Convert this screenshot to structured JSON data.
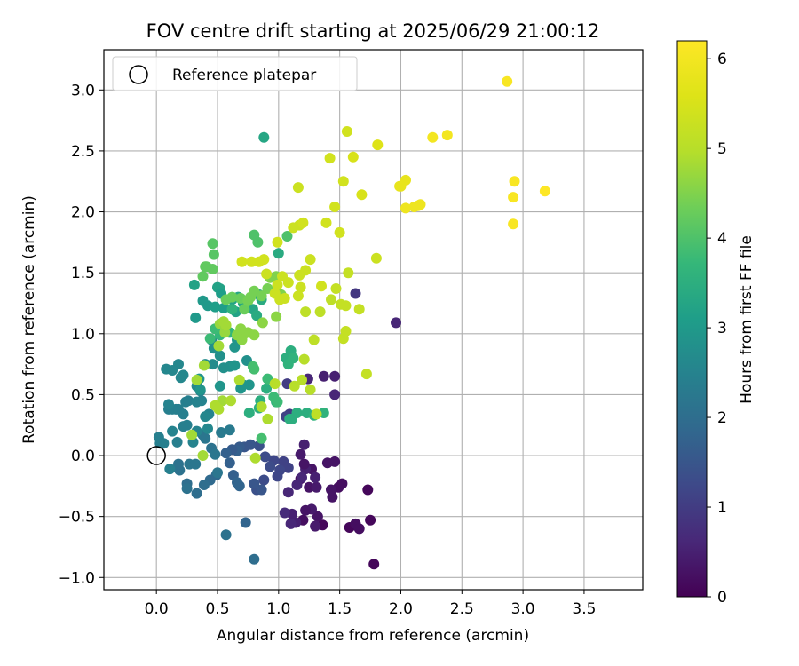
{
  "chart_data": {
    "type": "scatter",
    "title": "FOV centre drift starting at 2025/06/29 21:00:12",
    "xlabel": "Angular distance from reference (arcmin)",
    "ylabel": "Rotation from reference (arcmin)",
    "xlim": [
      -0.43,
      3.98
    ],
    "ylim": [
      -1.1,
      3.33
    ],
    "xticks": [
      "0.0",
      "0.5",
      "1.0",
      "1.5",
      "2.0",
      "2.5",
      "3.0",
      "3.5"
    ],
    "xtick_values": [
      0,
      0.5,
      1,
      1.5,
      2,
      2.5,
      3,
      3.5
    ],
    "yticks": [
      "−1.0",
      "−0.5",
      "0.0",
      "0.5",
      "1.0",
      "1.5",
      "2.0",
      "2.5",
      "3.0"
    ],
    "ytick_values": [
      -1,
      -0.5,
      0,
      0.5,
      1,
      1.5,
      2,
      2.5,
      3
    ],
    "grid": true,
    "legend": {
      "position": "top-left",
      "entries": [
        "Reference platepar"
      ]
    },
    "reference_point": {
      "x": 0,
      "y": 0
    },
    "colorbar": {
      "label": "Hours from first FF file",
      "range": [
        0,
        6.2
      ],
      "ticks": [
        "0",
        "1",
        "2",
        "3",
        "4",
        "5",
        "6"
      ],
      "tick_values": [
        0,
        1,
        2,
        3,
        4,
        5,
        6
      ],
      "colormap": "viridis"
    },
    "points": [
      [
        1.78,
        -0.89,
        0.1
      ],
      [
        1.75,
        -0.53,
        0.1
      ],
      [
        1.73,
        -0.28,
        0.1
      ],
      [
        1.58,
        -0.59,
        0.1
      ],
      [
        1.63,
        -0.56,
        0.2
      ],
      [
        1.66,
        -0.6,
        0.2
      ],
      [
        1.52,
        -0.23,
        0.2
      ],
      [
        1.49,
        -0.26,
        0.2
      ],
      [
        1.44,
        -0.34,
        0.3
      ],
      [
        1.43,
        -0.28,
        0.3
      ],
      [
        1.36,
        -0.57,
        0.1
      ],
      [
        1.32,
        -0.5,
        0.3
      ],
      [
        1.3,
        -0.58,
        0.4
      ],
      [
        1.27,
        -0.44,
        0.4
      ],
      [
        1.25,
        -0.26,
        0.3
      ],
      [
        1.22,
        -0.45,
        0.3
      ],
      [
        1.2,
        -0.53,
        0.2
      ],
      [
        1.18,
        -0.19,
        0.2
      ],
      [
        1.14,
        -0.55,
        0.5
      ],
      [
        1.11,
        -0.48,
        0.5
      ],
      [
        1.1,
        -0.56,
        0.6
      ],
      [
        1.08,
        -0.3,
        0.6
      ],
      [
        1.05,
        -0.47,
        0.7
      ],
      [
        1.27,
        -0.11,
        0.3
      ],
      [
        1.31,
        -0.26,
        0.4
      ],
      [
        1.3,
        -0.18,
        0.5
      ],
      [
        1.22,
        -0.11,
        0.5
      ],
      [
        1.19,
        -0.18,
        0.6
      ],
      [
        1.15,
        -0.24,
        0.6
      ],
      [
        1.4,
        -0.06,
        0.3
      ],
      [
        1.46,
        -0.05,
        0.3
      ],
      [
        1.37,
        0.65,
        0.5
      ],
      [
        1.46,
        0.65,
        0.5
      ],
      [
        1.46,
        0.5,
        0.6
      ],
      [
        1.24,
        0.63,
        0.6
      ],
      [
        1.21,
        0.09,
        0.5
      ],
      [
        1.18,
        0.01,
        0.4
      ],
      [
        1.21,
        -0.07,
        0.3
      ],
      [
        1.96,
        1.09,
        0.6
      ],
      [
        1.63,
        1.33,
        0.9
      ],
      [
        1.09,
        0.34,
        1.0
      ],
      [
        1.07,
        0.59,
        1.0
      ],
      [
        1.06,
        0.32,
        1.1
      ],
      [
        1.08,
        -0.1,
        1.1
      ],
      [
        1.04,
        -0.05,
        1.1
      ],
      [
        1.01,
        -0.12,
        1.2
      ],
      [
        0.96,
        -0.04,
        1.2
      ],
      [
        0.99,
        -0.17,
        1.2
      ],
      [
        0.93,
        -0.09,
        1.3
      ],
      [
        0.88,
        -0.2,
        1.3
      ],
      [
        0.82,
        -0.28,
        1.4
      ],
      [
        0.8,
        -0.23,
        1.5
      ],
      [
        0.86,
        -0.28,
        1.5
      ],
      [
        0.89,
        -0.01,
        1.3
      ],
      [
        0.84,
        0.08,
        1.4
      ],
      [
        0.77,
        0.09,
        1.5
      ],
      [
        0.72,
        0.07,
        1.5
      ],
      [
        0.68,
        0.07,
        1.6
      ],
      [
        0.66,
        0.04,
        1.7
      ],
      [
        0.62,
        0.05,
        1.6
      ],
      [
        0.57,
        0.02,
        1.7
      ],
      [
        0.6,
        -0.06,
        1.7
      ],
      [
        0.63,
        -0.16,
        1.7
      ],
      [
        0.68,
        -0.25,
        1.8
      ],
      [
        0.66,
        -0.22,
        1.8
      ],
      [
        0.73,
        -0.55,
        1.8
      ],
      [
        0.57,
        -0.65,
        2.1
      ],
      [
        0.8,
        -0.85,
        2.0
      ],
      [
        0.49,
        -0.16,
        1.9
      ],
      [
        0.44,
        -0.2,
        1.9
      ],
      [
        0.39,
        -0.24,
        2.0
      ],
      [
        0.33,
        -0.31,
        2.0
      ],
      [
        0.25,
        -0.23,
        2.0
      ],
      [
        0.25,
        -0.27,
        2.1
      ],
      [
        0.19,
        -0.12,
        2.1
      ],
      [
        0.18,
        -0.07,
        2.1
      ],
      [
        0.27,
        -0.07,
        2.2
      ],
      [
        0.32,
        -0.07,
        2.2
      ],
      [
        0.4,
        0.14,
        2.2
      ],
      [
        0.38,
        0.17,
        2.2
      ],
      [
        0.45,
        0.06,
        2.1
      ],
      [
        0.48,
        0.01,
        2.2
      ],
      [
        0.5,
        -0.14,
        2.2
      ],
      [
        0.53,
        0.19,
        2.3
      ],
      [
        0.6,
        0.21,
        2.3
      ],
      [
        0.25,
        0.25,
        2.4
      ],
      [
        0.22,
        0.34,
        2.4
      ],
      [
        0.18,
        0.38,
        2.4
      ],
      [
        0.16,
        0.38,
        2.4
      ],
      [
        0.13,
        0.38,
        2.4
      ],
      [
        0.1,
        0.38,
        2.4
      ],
      [
        0.24,
        0.44,
        2.4
      ],
      [
        0.26,
        0.45,
        2.4
      ],
      [
        0.33,
        0.44,
        2.5
      ],
      [
        0.37,
        0.45,
        2.5
      ],
      [
        0.43,
        0.34,
        2.5
      ],
      [
        0.36,
        0.53,
        2.5
      ],
      [
        0.33,
        0.57,
        2.6
      ],
      [
        0.22,
        0.66,
        2.6
      ],
      [
        0.18,
        0.75,
        2.6
      ],
      [
        0.2,
        0.64,
        2.6
      ],
      [
        0.13,
        0.7,
        2.6
      ],
      [
        0.08,
        0.71,
        2.6
      ],
      [
        0.1,
        0.42,
        2.5
      ],
      [
        0.13,
        0.2,
        2.5
      ],
      [
        0.03,
        0.1,
        2.4
      ],
      [
        0.06,
        0.1,
        2.4
      ],
      [
        0.02,
        0.15,
        2.4
      ],
      [
        0.11,
        -0.11,
        2.4
      ],
      [
        0.17,
        0.11,
        2.4
      ],
      [
        0.22,
        0.24,
        2.4
      ],
      [
        0.3,
        0.11,
        2.5
      ],
      [
        0.33,
        0.2,
        2.5
      ],
      [
        0.4,
        0.32,
        2.6
      ],
      [
        0.42,
        0.22,
        2.6
      ],
      [
        0.4,
        0.75,
        2.7
      ],
      [
        0.46,
        0.75,
        2.7
      ],
      [
        0.45,
        0.95,
        2.7
      ],
      [
        0.47,
        0.88,
        2.8
      ],
      [
        0.52,
        0.82,
        2.8
      ],
      [
        0.55,
        0.72,
        2.8
      ],
      [
        0.6,
        0.73,
        2.8
      ],
      [
        0.64,
        0.74,
        2.9
      ],
      [
        0.64,
        0.89,
        2.9
      ],
      [
        0.66,
        0.95,
        2.9
      ],
      [
        0.74,
        0.78,
        2.8
      ],
      [
        0.76,
        0.58,
        2.9
      ],
      [
        0.69,
        0.55,
        2.9
      ],
      [
        0.71,
        0.58,
        2.9
      ],
      [
        0.52,
        0.57,
        2.9
      ],
      [
        0.35,
        0.63,
        2.9
      ],
      [
        0.36,
        0.54,
        2.9
      ],
      [
        0.32,
        1.13,
        3.0
      ],
      [
        0.38,
        1.27,
        3.0
      ],
      [
        0.42,
        1.23,
        3.0
      ],
      [
        0.31,
        1.4,
        3.2
      ],
      [
        0.5,
        1.38,
        3.2
      ],
      [
        0.52,
        1.37,
        3.2
      ],
      [
        0.48,
        1.22,
        3.1
      ],
      [
        0.55,
        1.21,
        3.1
      ],
      [
        0.53,
        1.33,
        3.1
      ],
      [
        0.62,
        1.28,
        3.2
      ],
      [
        0.65,
        1.18,
        3.2
      ],
      [
        0.67,
        1.3,
        3.3
      ],
      [
        0.71,
        1.25,
        3.3
      ],
      [
        0.74,
        1.23,
        3.3
      ],
      [
        0.79,
        1.2,
        3.3
      ],
      [
        0.82,
        1.15,
        3.4
      ],
      [
        0.86,
        1.28,
        3.4
      ],
      [
        0.84,
        1.32,
        3.4
      ],
      [
        0.88,
        2.61,
        3.3
      ],
      [
        1.0,
        1.66,
        3.4
      ],
      [
        1.06,
        0.8,
        3.5
      ],
      [
        1.1,
        0.86,
        3.5
      ],
      [
        1.12,
        0.8,
        3.6
      ],
      [
        1.08,
        0.75,
        3.6
      ],
      [
        0.98,
        0.44,
        3.6
      ],
      [
        1.09,
        0.3,
        3.5
      ],
      [
        1.11,
        0.3,
        3.5
      ],
      [
        1.15,
        0.35,
        3.5
      ],
      [
        1.23,
        0.35,
        3.5
      ],
      [
        1.29,
        0.33,
        3.6
      ],
      [
        1.37,
        0.35,
        3.6
      ],
      [
        0.85,
        0.45,
        3.5
      ],
      [
        0.9,
        0.55,
        3.5
      ],
      [
        0.84,
        0.39,
        3.5
      ],
      [
        0.76,
        0.35,
        3.5
      ],
      [
        0.62,
        1.2,
        3.6
      ],
      [
        0.6,
        1.01,
        3.7
      ],
      [
        0.52,
        0.99,
        3.7
      ],
      [
        0.48,
        1.04,
        3.8
      ],
      [
        0.44,
        0.96,
        3.8
      ],
      [
        0.91,
        0.63,
        3.8
      ],
      [
        0.96,
        0.48,
        3.8
      ],
      [
        0.99,
        0.44,
        3.8
      ],
      [
        0.86,
        0.14,
        3.9
      ],
      [
        0.8,
        0.71,
        3.9
      ],
      [
        0.79,
        0.73,
        3.9
      ],
      [
        1.07,
        1.8,
        4.0
      ],
      [
        0.83,
        1.75,
        4.0
      ],
      [
        0.8,
        1.81,
        4.0
      ],
      [
        0.46,
        1.74,
        4.1
      ],
      [
        0.47,
        1.65,
        4.1
      ],
      [
        0.38,
        1.47,
        4.2
      ],
      [
        0.4,
        1.55,
        4.2
      ],
      [
        0.41,
        1.55,
        4.2
      ],
      [
        0.46,
        1.53,
        4.2
      ],
      [
        0.57,
        1.28,
        4.3
      ],
      [
        0.62,
        1.3,
        4.3
      ],
      [
        0.69,
        1.29,
        4.3
      ],
      [
        0.72,
        1.2,
        4.3
      ],
      [
        0.75,
        1.27,
        4.4
      ],
      [
        0.77,
        1.3,
        4.4
      ],
      [
        0.8,
        1.35,
        4.4
      ],
      [
        0.86,
        1.31,
        4.4
      ],
      [
        0.91,
        1.37,
        4.4
      ],
      [
        0.93,
        1.46,
        4.5
      ],
      [
        0.98,
        1.47,
        4.5
      ],
      [
        1.02,
        1.32,
        4.5
      ],
      [
        0.98,
        1.14,
        4.6
      ],
      [
        0.87,
        1.09,
        4.6
      ],
      [
        0.8,
        0.99,
        4.6
      ],
      [
        0.75,
        1.01,
        4.6
      ],
      [
        0.71,
        0.99,
        4.6
      ],
      [
        0.69,
        1.04,
        4.6
      ],
      [
        0.66,
        0.99,
        4.6
      ],
      [
        0.7,
        0.95,
        4.6
      ],
      [
        0.56,
        1.01,
        4.7
      ],
      [
        0.52,
        1.08,
        4.7
      ],
      [
        0.55,
        1.1,
        4.8
      ],
      [
        0.57,
        1.07,
        4.8
      ],
      [
        0.51,
        0.9,
        4.8
      ],
      [
        0.39,
        0.74,
        4.8
      ],
      [
        0.33,
        0.62,
        4.8
      ],
      [
        0.29,
        0.17,
        4.8
      ],
      [
        0.38,
        0.0,
        4.8
      ],
      [
        0.54,
        0.45,
        4.8
      ],
      [
        0.48,
        0.41,
        4.9
      ],
      [
        0.51,
        0.38,
        4.9
      ],
      [
        0.61,
        0.45,
        4.9
      ],
      [
        0.68,
        0.62,
        4.9
      ],
      [
        0.81,
        -0.02,
        4.9
      ],
      [
        0.86,
        0.4,
        4.9
      ],
      [
        0.91,
        0.3,
        4.9
      ],
      [
        0.97,
        0.59,
        5.0
      ],
      [
        1.13,
        0.57,
        5.0
      ],
      [
        1.19,
        0.62,
        5.0
      ],
      [
        1.21,
        0.79,
        5.0
      ],
      [
        1.26,
        0.54,
        5.0
      ],
      [
        1.31,
        0.34,
        5.1
      ],
      [
        1.29,
        0.95,
        5.1
      ],
      [
        1.22,
        1.18,
        5.1
      ],
      [
        1.34,
        1.18,
        5.1
      ],
      [
        1.43,
        1.28,
        5.1
      ],
      [
        1.47,
        1.37,
        5.2
      ],
      [
        1.51,
        1.24,
        5.2
      ],
      [
        1.53,
        0.96,
        5.2
      ],
      [
        1.55,
        1.02,
        5.2
      ],
      [
        1.57,
        1.5,
        5.2
      ],
      [
        1.66,
        1.2,
        5.2
      ],
      [
        1.72,
        0.67,
        5.2
      ],
      [
        1.8,
        1.62,
        5.3
      ],
      [
        1.56,
        2.66,
        5.4
      ],
      [
        1.42,
        2.44,
        5.4
      ],
      [
        1.39,
        1.91,
        5.4
      ],
      [
        1.35,
        1.39,
        5.4
      ],
      [
        1.26,
        1.61,
        5.3
      ],
      [
        1.22,
        1.52,
        5.3
      ],
      [
        1.17,
        1.48,
        5.3
      ],
      [
        1.17,
        1.89,
        5.3
      ],
      [
        1.16,
        2.2,
        5.3
      ],
      [
        1.12,
        1.87,
        5.3
      ],
      [
        1.08,
        1.42,
        5.3
      ],
      [
        1.03,
        1.47,
        5.3
      ],
      [
        1.01,
        1.28,
        5.3
      ],
      [
        1.16,
        1.31,
        5.3
      ],
      [
        1.18,
        1.38,
        5.3
      ],
      [
        1.05,
        1.29,
        5.3
      ],
      [
        0.99,
        1.4,
        5.3
      ],
      [
        0.97,
        1.33,
        5.3
      ],
      [
        0.9,
        1.49,
        5.3
      ],
      [
        0.84,
        1.59,
        5.4
      ],
      [
        0.78,
        1.59,
        5.4
      ],
      [
        0.7,
        1.59,
        5.4
      ],
      [
        0.88,
        1.61,
        5.4
      ],
      [
        0.99,
        1.75,
        5.4
      ],
      [
        1.2,
        1.91,
        5.4
      ],
      [
        1.46,
        2.04,
        5.4
      ],
      [
        1.5,
        1.83,
        5.4
      ],
      [
        1.53,
        2.25,
        5.4
      ],
      [
        1.61,
        2.45,
        5.5
      ],
      [
        1.68,
        2.14,
        5.5
      ],
      [
        1.81,
        2.55,
        5.6
      ],
      [
        1.99,
        2.21,
        5.8
      ],
      [
        2.04,
        2.26,
        5.8
      ],
      [
        2.04,
        2.03,
        5.9
      ],
      [
        2.11,
        2.04,
        5.9
      ],
      [
        2.16,
        2.06,
        5.9
      ],
      [
        2.26,
        2.61,
        6.0
      ],
      [
        2.38,
        2.63,
        6.0
      ],
      [
        2.87,
        3.07,
        6.1
      ],
      [
        2.92,
        2.12,
        6.1
      ],
      [
        2.93,
        2.25,
        6.1
      ],
      [
        2.92,
        1.9,
        6.1
      ],
      [
        3.18,
        2.17,
        6.2
      ],
      [
        2.14,
        2.05,
        5.9
      ],
      [
        2.0,
        2.21,
        5.8
      ],
      [
        1.55,
        1.23,
        5.2
      ]
    ]
  }
}
